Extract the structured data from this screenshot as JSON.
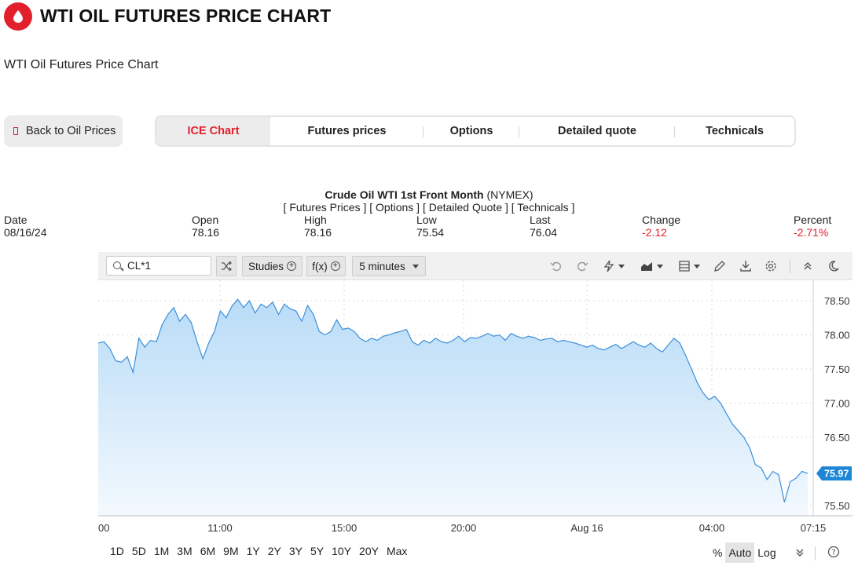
{
  "header": {
    "title": "WTI OIL FUTURES PRICE CHART",
    "subtitle": "WTI Oil Futures Price Chart",
    "logo_icon": "drop-icon",
    "brand_color": "#e2202c"
  },
  "nav": {
    "back_label": "Back to Oil Prices",
    "tabs": [
      {
        "label": "ICE Chart",
        "active": true
      },
      {
        "label": "Futures prices",
        "active": false
      },
      {
        "label": "Options",
        "active": false
      },
      {
        "label": "Detailed quote",
        "active": false
      },
      {
        "label": "Technicals",
        "active": false
      }
    ]
  },
  "quote": {
    "name": "Crude Oil WTI 1st Front Month",
    "exchange": "(NYMEX)",
    "links": "[ Futures Prices ] [ Options ] [ Detailed Quote ] [ Technicals ]",
    "fields": [
      {
        "label": "Date",
        "value": "08/16/24"
      },
      {
        "label": "Open",
        "value": "78.16"
      },
      {
        "label": "High",
        "value": "78.16"
      },
      {
        "label": "Low",
        "value": "75.54"
      },
      {
        "label": "Last",
        "value": "76.04"
      },
      {
        "label": "Change",
        "value": "-2.12"
      },
      {
        "label": "Percent",
        "value": "-2.71%"
      }
    ]
  },
  "toolbar": {
    "symbol": "CL*1",
    "studies_label": "Studies",
    "fx_label": "f(x)",
    "interval_label": "5 minutes",
    "icons": [
      "undo-icon",
      "redo-icon",
      "lightning-icon",
      "area-chart-icon",
      "table-icon",
      "pencil-icon",
      "download-icon",
      "gear-icon",
      "collapse-icon",
      "moon-icon"
    ]
  },
  "ranges": {
    "periods": [
      "1D",
      "5D",
      "1M",
      "3M",
      "6M",
      "9M",
      "1Y",
      "2Y",
      "3Y",
      "5Y",
      "10Y",
      "20Y",
      "Max"
    ],
    "scale": [
      {
        "label": "%",
        "active": false
      },
      {
        "label": "Auto",
        "active": true
      },
      {
        "label": "Log",
        "active": false
      }
    ]
  },
  "chart_data": {
    "type": "area",
    "yticks": [
      "78.50",
      "78.00",
      "77.50",
      "77.00",
      "76.50",
      "75.50"
    ],
    "ylim": [
      75.35,
      78.8
    ],
    "xticks": [
      "00",
      "11:00",
      "15:00",
      "20:00",
      "Aug 16",
      "04:00",
      "07:15"
    ],
    "last_price": "75.97",
    "grid": true,
    "line_color": "#3d8fd9",
    "series": [
      {
        "values": [
          77.88,
          77.9,
          77.8,
          77.62,
          77.6,
          77.68,
          77.45,
          77.95,
          77.82,
          77.92,
          77.9,
          78.15,
          78.3,
          78.4,
          78.2,
          78.3,
          78.18,
          77.9,
          77.65,
          77.88,
          78.05,
          78.35,
          78.25,
          78.42,
          78.52,
          78.4,
          78.5,
          78.32,
          78.45,
          78.4,
          78.48,
          78.3,
          78.45,
          78.38,
          78.35,
          78.2,
          78.43,
          78.3,
          78.05,
          78.0,
          78.05,
          78.22,
          78.08,
          78.1,
          78.05,
          77.95,
          77.9,
          77.95,
          77.92,
          77.98,
          78.0,
          78.03,
          78.05,
          78.08,
          77.9,
          77.85,
          77.92,
          77.88,
          77.95,
          77.9,
          77.88,
          77.92,
          77.98,
          77.9,
          77.96,
          77.95,
          77.98,
          78.02,
          77.98,
          78.0,
          77.92,
          78.02,
          77.98,
          77.95,
          77.98,
          77.96,
          77.92,
          77.94,
          77.95,
          77.9,
          77.92,
          77.9,
          77.88,
          77.85,
          77.82,
          77.85,
          77.8,
          77.78,
          77.82,
          77.86,
          77.8,
          77.85,
          77.9,
          77.85,
          77.82,
          77.88,
          77.8,
          77.75,
          77.85,
          77.95,
          77.88,
          77.7,
          77.5,
          77.3,
          77.15,
          77.05,
          77.1,
          77.0,
          76.85,
          76.7,
          76.6,
          76.5,
          76.35,
          76.1,
          76.05,
          75.88,
          76.0,
          75.95,
          75.55,
          75.85,
          75.9,
          76.0,
          75.97
        ]
      }
    ]
  }
}
